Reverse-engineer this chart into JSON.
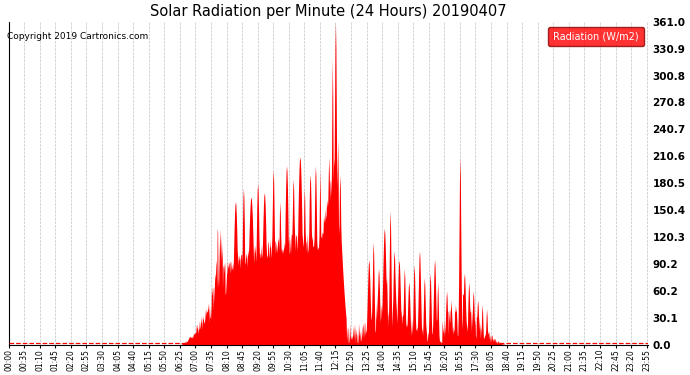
{
  "title": "Solar Radiation per Minute (24 Hours) 20190407",
  "copyright_text": "Copyright 2019 Cartronics.com",
  "legend_label": "Radiation (W/m2)",
  "fill_color": "#FF0000",
  "background_color": "#FFFFFF",
  "grid_color": "#BBBBBB",
  "legend_bg": "#FF0000",
  "legend_text_color": "#FFFFFF",
  "dashed_line_color": "#FF0000",
  "ylim": [
    0.0,
    361.0
  ],
  "yticks": [
    0.0,
    30.1,
    60.2,
    90.2,
    120.3,
    150.4,
    180.5,
    210.6,
    240.7,
    270.8,
    300.8,
    330.9,
    361.0
  ],
  "total_minutes": 1440,
  "x_tick_interval": 35,
  "x_tick_labels": [
    "00:00",
    "00:35",
    "01:10",
    "01:45",
    "02:20",
    "02:55",
    "03:30",
    "04:05",
    "04:40",
    "05:15",
    "05:50",
    "06:25",
    "07:00",
    "07:35",
    "08:10",
    "08:45",
    "09:20",
    "09:55",
    "10:30",
    "11:05",
    "11:40",
    "12:15",
    "12:50",
    "13:25",
    "14:00",
    "14:35",
    "15:10",
    "15:45",
    "16:20",
    "16:55",
    "17:30",
    "18:05",
    "18:40",
    "19:15",
    "19:50",
    "20:25",
    "21:00",
    "21:35",
    "22:10",
    "22:45",
    "23:20",
    "23:55"
  ]
}
